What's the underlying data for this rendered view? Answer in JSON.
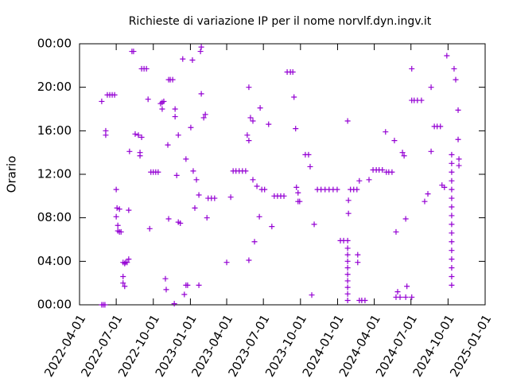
{
  "chart_data": {
    "type": "scatter",
    "title": "Richieste di variazione IP per il nome norvlf.dyn.ingv.it",
    "ylabel": "Orario",
    "color": "#9400d3",
    "xlim": [
      "2022-04-01",
      "2025-01-01"
    ],
    "xticks": [
      "2022-04-01",
      "2022-07-01",
      "2022-10-01",
      "2023-01-01",
      "2023-04-01",
      "2023-07-01",
      "2023-10-01",
      "2024-01-01",
      "2024-04-01",
      "2024-07-01",
      "2024-10-01",
      "2025-01-01"
    ],
    "ylim": [
      0,
      24
    ],
    "yticks": [
      {
        "value": 0,
        "label": "00:00"
      },
      {
        "value": 4,
        "label": "04:00"
      },
      {
        "value": 8,
        "label": "08:00"
      },
      {
        "value": 12,
        "label": "12:00"
      },
      {
        "value": 16,
        "label": "16:00"
      },
      {
        "value": 20,
        "label": "20:00"
      },
      {
        "value": 24,
        "label": "00:00"
      }
    ],
    "x": [
      "2022-05-26",
      "2022-05-26",
      "2022-05-30",
      "2022-06-03",
      "2022-06-05",
      "2022-06-05",
      "2022-06-09",
      "2022-06-15",
      "2022-06-21",
      "2022-06-27",
      "2022-07-01",
      "2022-07-01",
      "2022-07-03",
      "2022-07-05",
      "2022-07-05",
      "2022-07-09",
      "2022-07-13",
      "2022-07-09",
      "2022-07-18",
      "2022-07-18",
      "2022-07-22",
      "2022-07-18",
      "2022-07-22",
      "2022-07-24",
      "2022-07-28",
      "2022-08-01",
      "2022-08-01",
      "2022-08-03",
      "2022-08-09",
      "2022-08-13",
      "2022-08-17",
      "2022-08-25",
      "2022-08-29",
      "2022-08-29",
      "2022-09-02",
      "2022-09-02",
      "2022-09-08",
      "2022-09-14",
      "2022-09-18",
      "2022-09-22",
      "2022-09-25",
      "2022-10-01",
      "2022-10-07",
      "2022-10-13",
      "2022-10-19",
      "2022-10-23",
      "2022-10-27",
      "2022-10-23",
      "2022-10-31",
      "2022-11-02",
      "2022-11-06",
      "2022-11-08",
      "2022-11-08",
      "2022-11-12",
      "2022-11-18",
      "2022-11-22",
      "2022-11-24",
      "2022-11-24",
      "2022-11-28",
      "2022-12-02",
      "2022-12-02",
      "2022-12-07",
      "2022-12-13",
      "2022-12-17",
      "2022-12-21",
      "2022-12-21",
      "2022-12-25",
      "2023-01-02",
      "2023-01-06",
      "2023-01-08",
      "2023-01-12",
      "2023-01-16",
      "2023-01-22",
      "2023-01-22",
      "2023-01-26",
      "2023-01-28",
      "2023-01-28",
      "2023-02-03",
      "2023-02-07",
      "2023-02-11",
      "2023-02-14",
      "2023-02-22",
      "2023-03-02",
      "2023-04-01",
      "2023-04-11",
      "2023-04-17",
      "2023-04-24",
      "2023-05-02",
      "2023-05-10",
      "2023-05-18",
      "2023-05-22",
      "2023-05-26",
      "2023-05-26",
      "2023-05-26",
      "2023-05-30",
      "2023-06-05",
      "2023-06-05",
      "2023-06-09",
      "2023-06-15",
      "2023-06-21",
      "2023-06-23",
      "2023-06-27",
      "2023-07-04",
      "2023-07-14",
      "2023-07-22",
      "2023-07-28",
      "2023-08-05",
      "2023-08-13",
      "2023-08-21",
      "2023-08-29",
      "2023-09-06",
      "2023-09-12",
      "2023-09-15",
      "2023-09-19",
      "2023-09-21",
      "2023-09-25",
      "2023-09-25",
      "2023-09-29",
      "2023-10-13",
      "2023-10-21",
      "2023-10-25",
      "2023-10-29",
      "2023-11-04",
      "2023-11-12",
      "2023-11-21",
      "2023-12-01",
      "2023-12-11",
      "2023-12-21",
      "2023-12-31",
      "2024-01-08",
      "2024-01-16",
      "2024-01-26",
      "2024-01-26",
      "2024-01-26",
      "2024-01-26",
      "2024-01-26",
      "2024-01-26",
      "2024-01-26",
      "2024-01-26",
      "2024-01-26",
      "2024-01-26",
      "2024-01-26",
      "2024-01-28",
      "2024-01-28",
      "2024-02-02",
      "2024-02-10",
      "2024-02-18",
      "2024-02-20",
      "2024-02-20",
      "2024-02-24",
      "2024-03-01",
      "2024-03-09",
      "2024-02-24",
      "2024-03-19",
      "2024-03-29",
      "2024-04-06",
      "2024-04-13",
      "2024-04-21",
      "2024-04-29",
      "2024-05-01",
      "2024-05-07",
      "2024-05-15",
      "2024-05-21",
      "2024-05-25",
      "2024-05-29",
      "2024-05-25",
      "2024-06-04",
      "2024-06-18",
      "2024-07-03",
      "2024-06-10",
      "2024-06-14",
      "2024-06-18",
      "2024-06-21",
      "2024-07-03",
      "2024-07-03",
      "2024-07-09",
      "2024-07-17",
      "2024-07-27",
      "2024-08-04",
      "2024-08-12",
      "2024-08-20",
      "2024-08-20",
      "2024-08-28",
      "2024-09-04",
      "2024-09-12",
      "2024-09-16",
      "2024-09-22",
      "2024-09-28",
      "2024-10-10",
      "2024-10-10",
      "2024-10-10",
      "2024-10-10",
      "2024-10-10",
      "2024-10-10",
      "2024-10-10",
      "2024-10-10",
      "2024-10-10",
      "2024-10-10",
      "2024-10-10",
      "2024-10-10",
      "2024-10-10",
      "2024-10-10",
      "2024-10-10",
      "2024-10-10",
      "2024-10-16",
      "2024-10-20",
      "2024-10-26",
      "2024-10-26",
      "2024-10-28",
      "2024-10-28"
    ],
    "values": [
      18.7,
      0.0,
      0.0,
      0.0,
      16.0,
      15.6,
      19.3,
      19.3,
      19.3,
      19.3,
      10.6,
      8.1,
      8.9,
      7.3,
      6.8,
      6.7,
      6.7,
      8.8,
      2.6,
      2.0,
      1.7,
      3.9,
      3.8,
      3.9,
      3.9,
      4.2,
      8.7,
      14.1,
      23.3,
      23.3,
      15.7,
      15.6,
      14.0,
      13.7,
      15.4,
      21.7,
      21.7,
      21.7,
      18.9,
      7.0,
      12.2,
      12.2,
      12.2,
      12.2,
      18.5,
      18.6,
      18.7,
      18.0,
      2.4,
      1.4,
      14.7,
      7.9,
      20.7,
      20.7,
      20.7,
      0.1,
      18.0,
      17.3,
      11.9,
      15.6,
      7.6,
      7.5,
      22.6,
      0.95,
      13.4,
      1.8,
      1.8,
      16.3,
      22.5,
      12.3,
      8.9,
      11.5,
      1.8,
      10.1,
      23.3,
      23.7,
      19.4,
      17.2,
      17.5,
      8.0,
      9.8,
      9.8,
      9.8,
      3.9,
      9.9,
      12.3,
      12.3,
      12.3,
      12.3,
      12.3,
      15.6,
      15.1,
      20.0,
      4.1,
      17.2,
      16.9,
      11.5,
      5.8,
      10.9,
      8.1,
      18.1,
      10.6,
      10.6,
      16.6,
      7.2,
      10.0,
      10.0,
      10.0,
      10.0,
      21.4,
      21.4,
      21.4,
      19.1,
      16.2,
      10.8,
      10.3,
      9.5,
      9.5,
      13.8,
      13.8,
      12.7,
      0.9,
      7.4,
      10.6,
      10.6,
      10.6,
      10.6,
      10.6,
      10.6,
      5.9,
      5.9,
      5.9,
      0.4,
      1.0,
      1.6,
      2.2,
      2.8,
      3.4,
      4.0,
      4.6,
      5.2,
      16.9,
      9.6,
      8.4,
      10.6,
      10.6,
      10.6,
      4.6,
      3.9,
      0.4,
      0.4,
      0.4,
      11.4,
      11.5,
      12.4,
      12.4,
      12.4,
      12.4,
      15.9,
      12.2,
      12.2,
      12.2,
      15.1,
      6.7,
      1.2,
      0.7,
      0.7,
      0.7,
      0.7,
      14.0,
      13.7,
      7.9,
      1.7,
      21.7,
      18.8,
      18.8,
      18.8,
      18.8,
      9.5,
      10.2,
      20.0,
      14.1,
      16.4,
      16.4,
      16.4,
      11.0,
      10.8,
      22.9,
      1.8,
      2.6,
      3.4,
      4.2,
      5.0,
      5.8,
      6.6,
      7.4,
      8.2,
      9.0,
      9.8,
      10.6,
      11.4,
      12.2,
      13.0,
      13.8,
      21.7,
      20.7,
      17.9,
      15.2,
      13.4,
      12.8
    ]
  }
}
